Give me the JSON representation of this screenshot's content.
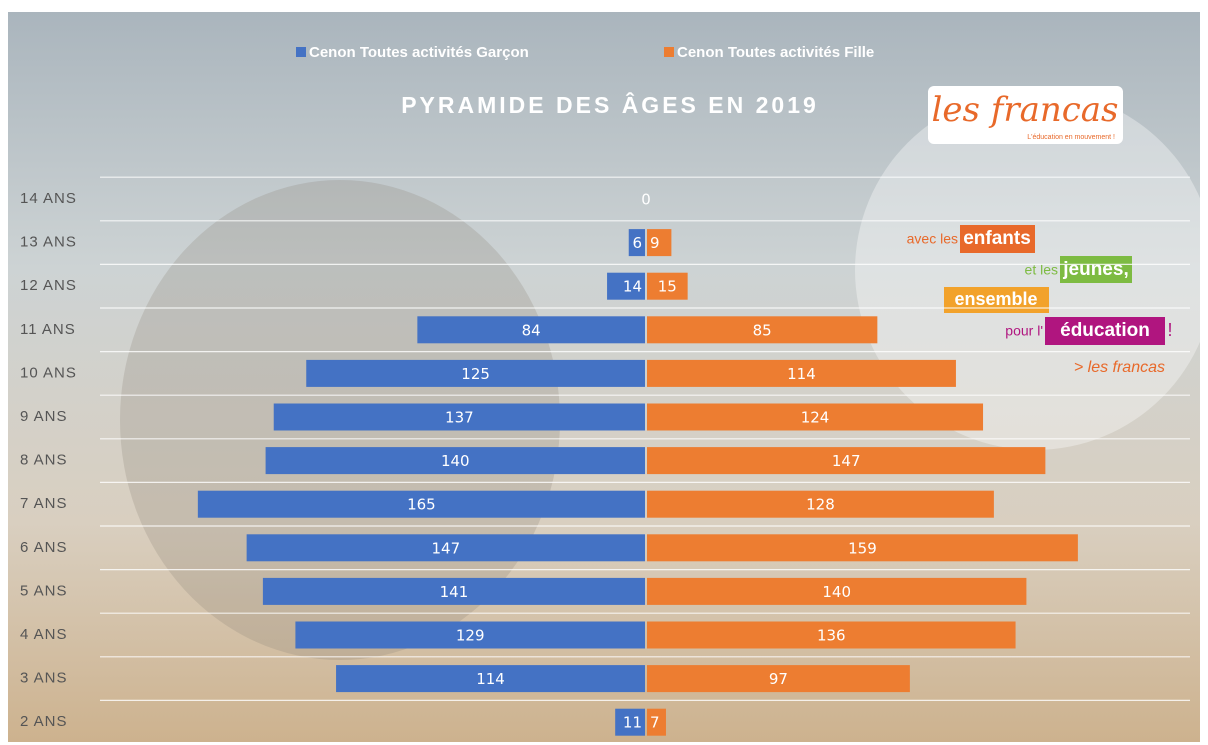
{
  "chart_data": {
    "type": "pyramid",
    "title": "PYRAMIDE DES ÂGES EN 2019",
    "legend": "top",
    "categories": [
      "14 ANS",
      "13 ANS",
      "12 ANS",
      "11 ANS",
      "10 ANS",
      "9 ANS",
      "8 ANS",
      "7 ANS",
      "6 ANS",
      "5 ANS",
      "4 ANS",
      "3 ANS",
      "2 ANS"
    ],
    "series": [
      {
        "name": "Cenon Toutes activités Garçon",
        "color": "#4472c4",
        "side": "left",
        "values": [
          0,
          6,
          14,
          84,
          125,
          137,
          140,
          165,
          147,
          141,
          129,
          114,
          11
        ]
      },
      {
        "name": "Cenon Toutes activités Fille",
        "color": "#ed7d31",
        "side": "right",
        "values": [
          null,
          9,
          15,
          85,
          114,
          124,
          147,
          128,
          159,
          140,
          136,
          97,
          7
        ]
      }
    ]
  },
  "branding": {
    "logo": "les francas",
    "tagline": "L'éducation en mouvement !",
    "slogan": [
      "avec les",
      "enfants",
      "et les",
      "jeunes,",
      "ensemble",
      "pour l'",
      "éducation",
      "!",
      "> les francas"
    ]
  }
}
